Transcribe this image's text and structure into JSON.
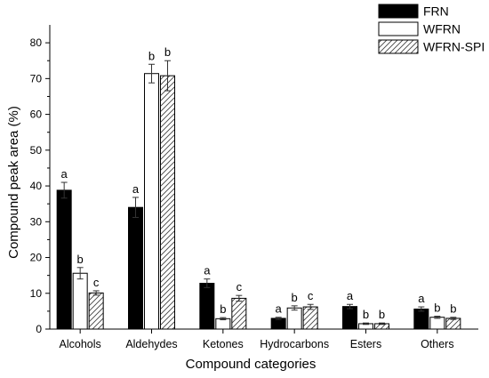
{
  "chart_data": {
    "type": "bar",
    "title": "",
    "xlabel": "Compound categories",
    "ylabel": "Compound peak area (%)",
    "ylim": [
      0,
      85
    ],
    "yticks": [
      0,
      10,
      20,
      30,
      40,
      50,
      60,
      70,
      80
    ],
    "categories": [
      "Alcohols",
      "Aldehydes",
      "Ketones",
      "Hydrocarbons",
      "Esters",
      "Others"
    ],
    "series": [
      {
        "name": "FRN",
        "fill": "#000000",
        "pattern": "solid",
        "values": [
          38.8,
          34.0,
          12.8,
          3.0,
          6.3,
          5.6
        ],
        "errors": [
          2.2,
          2.8,
          1.2,
          0.3,
          0.6,
          0.6
        ],
        "labels": [
          "a",
          "a",
          "a",
          "a",
          "a",
          "a"
        ]
      },
      {
        "name": "WFRN",
        "fill": "#ffffff",
        "pattern": "open",
        "values": [
          15.6,
          71.4,
          2.9,
          5.9,
          1.5,
          3.3
        ],
        "errors": [
          1.6,
          2.6,
          0.3,
          0.6,
          0.2,
          0.3
        ],
        "labels": [
          "b",
          "b",
          "b",
          "b",
          "b",
          "b"
        ]
      },
      {
        "name": "WFRN-SPI",
        "fill": "#ffffff",
        "pattern": "hatched",
        "values": [
          10.1,
          70.8,
          8.6,
          6.2,
          1.5,
          3.0
        ],
        "errors": [
          0.6,
          4.2,
          0.8,
          0.7,
          0.2,
          0.3
        ],
        "labels": [
          "c",
          "b",
          "c",
          "c",
          "b",
          "b"
        ]
      }
    ],
    "legend_position": "top-right",
    "grid": false
  }
}
